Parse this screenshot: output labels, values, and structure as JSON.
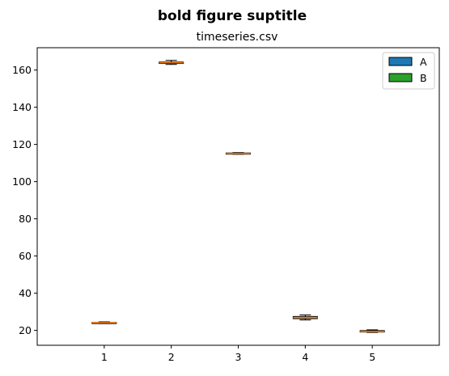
{
  "chart_data": {
    "type": "box",
    "suptitle": "bold figure suptitle",
    "title": "timeseries.csv",
    "xlabel": "",
    "ylabel": "",
    "categories": [
      "1",
      "2",
      "3",
      "4",
      "5"
    ],
    "ylim": [
      12,
      172
    ],
    "yticks": [
      20,
      40,
      60,
      80,
      100,
      120,
      140,
      160
    ],
    "grid": false,
    "legend": {
      "placement": "top-right",
      "entries": [
        {
          "label": "A",
          "color": "#1f77b4"
        },
        {
          "label": "B",
          "color": "#2ca02c"
        }
      ]
    },
    "box_color": "#e8e4d6",
    "median_color": "#ff7f0e",
    "boxes": [
      {
        "x": "1",
        "whisker_low": 23.7,
        "q1": 23.9,
        "median": 24.1,
        "q3": 24.3,
        "whisker_high": 24.6
      },
      {
        "x": "2",
        "whisker_low": 163.0,
        "q1": 163.5,
        "median": 163.9,
        "q3": 164.3,
        "whisker_high": 165.2
      },
      {
        "x": "3",
        "whisker_low": 114.7,
        "q1": 114.9,
        "median": 115.1,
        "q3": 115.4,
        "whisker_high": 115.6
      },
      {
        "x": "4",
        "whisker_low": 25.6,
        "q1": 26.3,
        "median": 26.9,
        "q3": 27.5,
        "whisker_high": 28.3
      },
      {
        "x": "5",
        "whisker_low": 18.9,
        "q1": 19.1,
        "median": 19.4,
        "q3": 19.9,
        "whisker_high": 20.3
      }
    ]
  }
}
